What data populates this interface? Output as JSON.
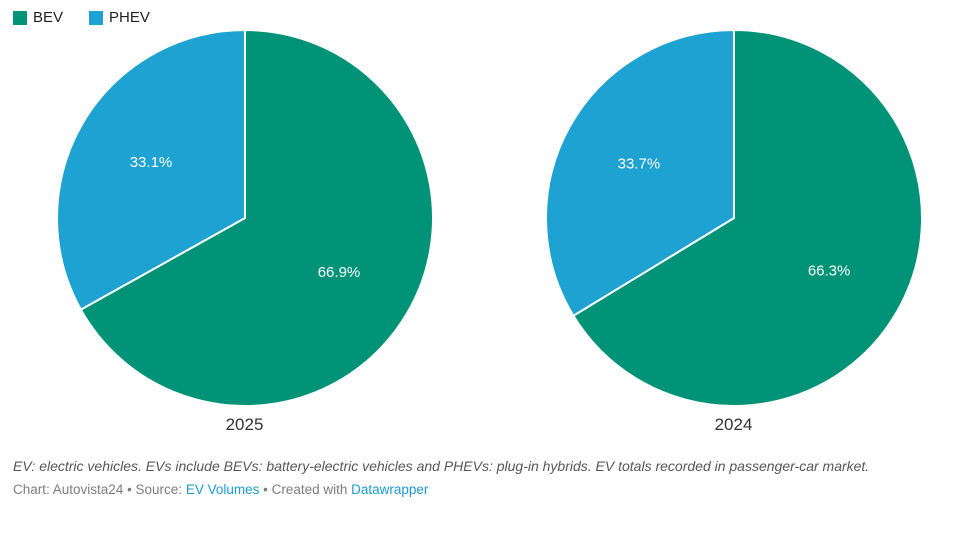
{
  "legend": {
    "items": [
      {
        "label": "BEV",
        "color": "#009377"
      },
      {
        "label": "PHEV",
        "color": "#1da2d2"
      }
    ]
  },
  "chart_data": [
    {
      "type": "pie",
      "title": "2025",
      "start_angle_deg": 0,
      "direction": "clockwise",
      "slices": [
        {
          "name": "BEV",
          "value": 66.9,
          "label": "66.9%",
          "color": "#009377"
        },
        {
          "name": "PHEV",
          "value": 33.1,
          "label": "33.1%",
          "color": "#1da2d2"
        }
      ]
    },
    {
      "type": "pie",
      "title": "2024",
      "start_angle_deg": 0,
      "direction": "clockwise",
      "slices": [
        {
          "name": "BEV",
          "value": 66.3,
          "label": "66.3%",
          "color": "#009377"
        },
        {
          "name": "PHEV",
          "value": 33.7,
          "label": "33.7%",
          "color": "#1da2d2"
        }
      ]
    }
  ],
  "footer": {
    "note": "EV: electric vehicles. EVs include BEVs: battery-electric vehicles and PHEVs: plug-in hybrids. EV totals recorded in passenger-car market.",
    "attribution_prefix": "Chart: Autovista24 • Source: ",
    "source_link_label": "EV Volumes",
    "attribution_middle": " • Created with ",
    "tool_link_label": "Datawrapper"
  }
}
